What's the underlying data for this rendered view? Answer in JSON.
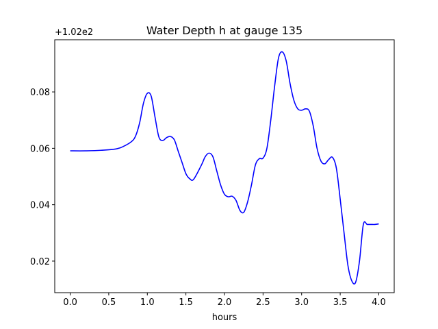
{
  "chart_data": {
    "type": "line",
    "title": "Water Depth h at gauge 135",
    "xlabel": "hours",
    "ylabel": "",
    "y_offset_label": "+1.02e2",
    "xlim": [
      -0.2,
      4.2
    ],
    "ylim": [
      0.0088,
      0.0985
    ],
    "x_ticks": [
      0.0,
      0.5,
      1.0,
      1.5,
      2.0,
      2.5,
      3.0,
      3.5,
      4.0
    ],
    "x_tick_labels": [
      "0.0",
      "0.5",
      "1.0",
      "1.5",
      "2.0",
      "2.5",
      "3.0",
      "3.5",
      "4.0"
    ],
    "y_ticks": [
      0.02,
      0.04,
      0.06,
      0.08
    ],
    "y_tick_labels": [
      "0.02",
      "0.04",
      "0.06",
      "0.08"
    ],
    "grid": false,
    "series": [
      {
        "color": "#0000ff",
        "x": [
          0.0,
          0.2,
          0.4,
          0.6,
          0.7,
          0.8,
          0.85,
          0.9,
          0.95,
          1.0,
          1.05,
          1.1,
          1.15,
          1.2,
          1.25,
          1.3,
          1.35,
          1.4,
          1.45,
          1.5,
          1.55,
          1.6,
          1.7,
          1.75,
          1.8,
          1.85,
          1.9,
          1.95,
          2.0,
          2.05,
          2.1,
          2.15,
          2.2,
          2.25,
          2.3,
          2.35,
          2.4,
          2.45,
          2.5,
          2.55,
          2.6,
          2.65,
          2.7,
          2.75,
          2.8,
          2.85,
          2.9,
          2.95,
          3.0,
          3.05,
          3.1,
          3.15,
          3.2,
          3.25,
          3.3,
          3.35,
          3.4,
          3.45,
          3.5,
          3.55,
          3.6,
          3.65,
          3.7,
          3.75,
          3.8,
          3.85,
          3.9,
          3.95,
          4.0
        ],
        "y": [
          0.0591,
          0.0591,
          0.0593,
          0.0598,
          0.0608,
          0.0625,
          0.0645,
          0.069,
          0.076,
          0.0795,
          0.0785,
          0.071,
          0.064,
          0.0628,
          0.0638,
          0.0642,
          0.063,
          0.059,
          0.055,
          0.051,
          0.0492,
          0.049,
          0.054,
          0.057,
          0.0583,
          0.057,
          0.052,
          0.047,
          0.0437,
          0.0428,
          0.043,
          0.0415,
          0.038,
          0.0373,
          0.041,
          0.047,
          0.054,
          0.0563,
          0.0565,
          0.06,
          0.07,
          0.082,
          0.092,
          0.0942,
          0.091,
          0.083,
          0.077,
          0.074,
          0.0735,
          0.074,
          0.0732,
          0.068,
          0.06,
          0.0555,
          0.0545,
          0.056,
          0.0568,
          0.053,
          0.042,
          0.03,
          0.0185,
          0.013,
          0.0125,
          0.02,
          0.033,
          0.033,
          0.033,
          0.033,
          0.0332
        ]
      }
    ]
  }
}
